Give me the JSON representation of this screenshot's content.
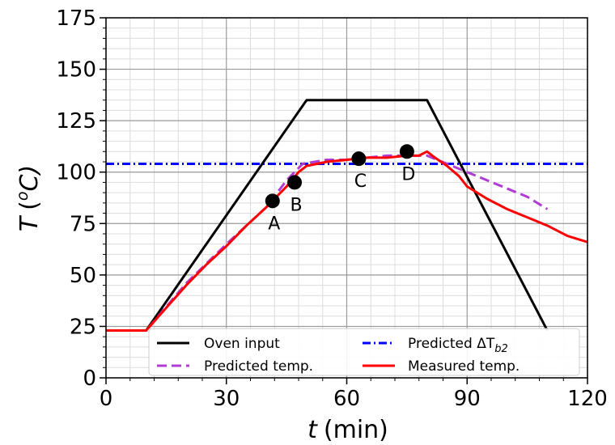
{
  "chart_data": {
    "type": "line",
    "xlabel_main": "t",
    "xlabel_unit": "(min)",
    "ylabel_main": "T",
    "ylabel_unit": "(",
    "ylabel_sup": "o",
    "ylabel_tail": "C)",
    "xlim": [
      0,
      120
    ],
    "ylim": [
      0,
      175
    ],
    "xticks": [
      "0",
      "30",
      "60",
      "90",
      "120"
    ],
    "yticks": [
      "0",
      "25",
      "50",
      "75",
      "100",
      "125",
      "150",
      "175"
    ],
    "grid": true,
    "legend_position": "bottom",
    "series": [
      {
        "name": "Oven input",
        "color": "#000000",
        "style": "solid",
        "x": [
          0,
          10,
          50,
          80,
          110
        ],
        "y": [
          23,
          23,
          135,
          135,
          23
        ]
      },
      {
        "name": "Predicted temp.",
        "color": "#b03bd6",
        "style": "dashed",
        "x": [
          0,
          10,
          20,
          30,
          40,
          45,
          49,
          52,
          55,
          60,
          65,
          70,
          75,
          80,
          85,
          90,
          95,
          100,
          105,
          110
        ],
        "y": [
          23,
          23,
          46,
          65,
          83,
          96,
          104,
          105,
          106,
          106,
          107,
          108,
          108,
          108,
          104,
          100,
          96,
          92,
          88,
          82
        ]
      },
      {
        "name": "Measured temp.",
        "color": "#ff0000",
        "style": "solid",
        "x": [
          0,
          10,
          15,
          20,
          25,
          30,
          35,
          40,
          45,
          48,
          50,
          55,
          60,
          65,
          70,
          75,
          78,
          80,
          82,
          85,
          88,
          90,
          95,
          100,
          105,
          110,
          115,
          120
        ],
        "y": [
          23,
          23,
          34,
          45,
          55,
          64,
          74,
          83,
          93,
          100,
          103,
          105,
          106,
          107,
          107,
          108,
          108,
          110,
          107,
          103,
          98,
          93,
          87,
          82,
          78,
          74,
          69,
          66
        ]
      },
      {
        "name": "Predicted ΔT",
        "name_sub": "b2",
        "color": "#0000ff",
        "style": "dashdot",
        "x": [
          0,
          120
        ],
        "y": [
          104,
          104
        ]
      }
    ],
    "points": [
      {
        "label": "A",
        "x": 41.5,
        "y": 86
      },
      {
        "label": "B",
        "x": 47,
        "y": 95
      },
      {
        "label": "C",
        "x": 63,
        "y": 106.5
      },
      {
        "label": "D",
        "x": 75,
        "y": 110
      }
    ]
  }
}
